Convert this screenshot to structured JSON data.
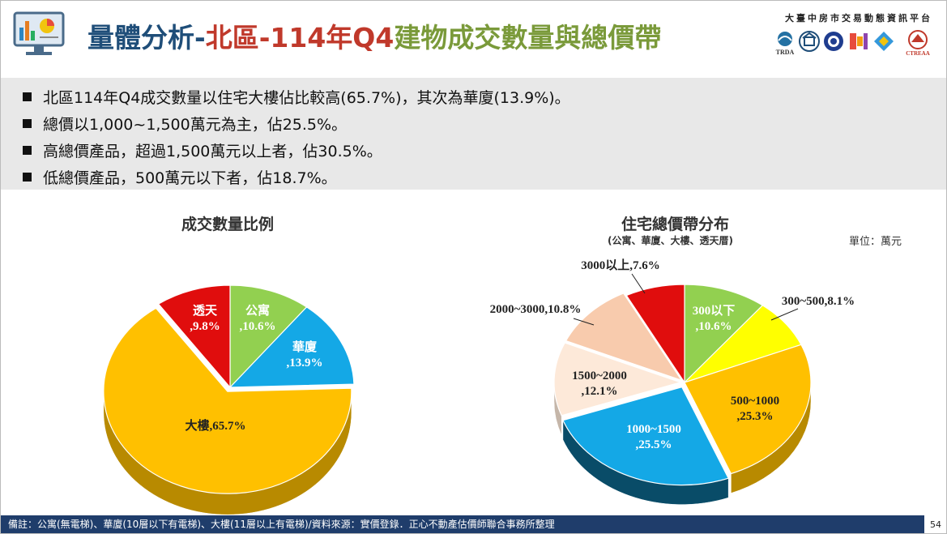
{
  "header": {
    "title_part1": "量體分析-",
    "title_part2": "北區-114年Q4",
    "title_part3": "建物成交數量與總價帶",
    "platform": "大臺中房市交易動態資訊平台",
    "logo_text_1": "TRDA",
    "logo_text_2": "CTREAA"
  },
  "bullets": [
    "北區114年Q4成交數量以住宅大樓佔比較高(65.7%)，其次為華廈(13.9%)。",
    "總價以1,000~1,500萬元為主，佔25.5%。",
    "高總價產品，超過1,500萬元以上者，佔30.5%。",
    "低總價產品，500萬元以下者，佔18.7%。"
  ],
  "chart_data": [
    {
      "type": "pie",
      "title": "成交數量比例",
      "three_d": true,
      "slices": [
        {
          "label": "公寓",
          "value": 10.6,
          "text": ",10.6%",
          "color": "#92d050"
        },
        {
          "label": "華廈",
          "value": 13.9,
          "text": ",13.9%",
          "color": "#14a8e6"
        },
        {
          "label": "大樓",
          "value": 65.7,
          "text": "大樓,65.7%",
          "color": "#ffc000"
        },
        {
          "label": "透天",
          "value": 9.8,
          "text": ",9.8%",
          "color": "#e00d0d"
        }
      ]
    },
    {
      "type": "pie",
      "title": "住宅總價帶分布",
      "subtitle": "(公寓、華廈、大樓、透天厝)",
      "unit": "單位：萬元",
      "three_d": true,
      "slices": [
        {
          "label": "300以下",
          "value": 10.6,
          "text": ",10.6%",
          "color": "#92d050"
        },
        {
          "label": "300~500",
          "value": 8.1,
          "text": "300~500,8.1%",
          "color": "#ffff00"
        },
        {
          "label": "500~1000",
          "value": 25.3,
          "text": ",25.3%",
          "color": "#ffc000"
        },
        {
          "label": "1000~1500",
          "value": 25.5,
          "text": ",25.5%",
          "color": "#14a8e6"
        },
        {
          "label": "1500~2000",
          "value": 12.1,
          "text": ",12.1%",
          "color": "#fde9d9"
        },
        {
          "label": "2000~3000",
          "value": 10.8,
          "text": "2000~3000,10.8%",
          "color": "#f8cbad"
        },
        {
          "label": "3000以上",
          "value": 7.6,
          "text": "3000以上,7.6%",
          "color": "#e00d0d"
        }
      ]
    }
  ],
  "footer": {
    "note": "備註：公寓(無電梯)、華廈(10層以下有電梯)、大樓(11層以上有電梯)/資料來源：實價登錄．正心不動產估價師聯合事務所整理",
    "page": "54"
  }
}
